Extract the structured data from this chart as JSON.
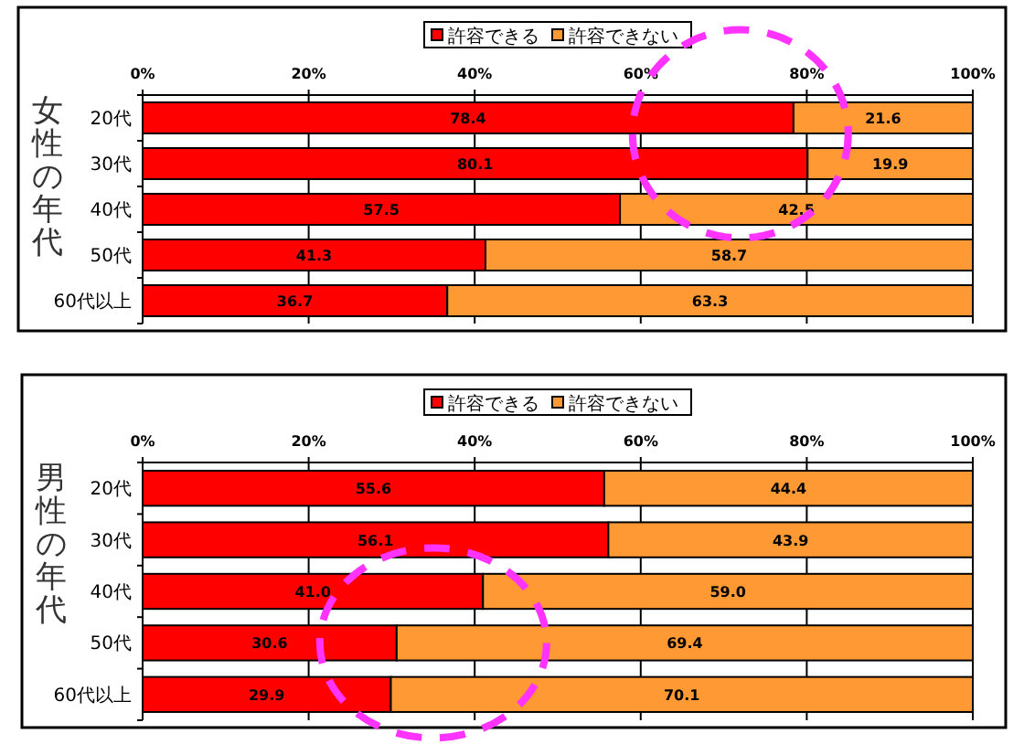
{
  "chart_data": [
    {
      "type": "bar",
      "orientation": "horizontal",
      "stacked": true,
      "ylabel": "女性の年代",
      "categories": [
        "20代",
        "30代",
        "40代",
        "50代",
        "60代以上"
      ],
      "series": [
        {
          "name": "許容できる",
          "color": "#ff0000",
          "values": [
            78.4,
            80.1,
            57.5,
            41.3,
            36.7
          ],
          "value_labels": [
            "78.4",
            "80.1",
            "57.5",
            "41.3",
            "36.7"
          ]
        },
        {
          "name": "許容できない",
          "color": "#ff9933",
          "values": [
            21.6,
            19.9,
            42.5,
            58.7,
            63.3
          ],
          "value_labels": [
            "21.6",
            "19.9",
            "42.5",
            "58.7",
            "63.3"
          ]
        }
      ],
      "xlim": [
        0,
        100
      ],
      "xticks": [
        {
          "value": 0,
          "label": "0%"
        },
        {
          "value": 20,
          "label": "20%"
        },
        {
          "value": 40,
          "label": "40%"
        },
        {
          "value": 60,
          "label": "60%"
        },
        {
          "value": 80,
          "label": "80%"
        },
        {
          "value": 100,
          "label": "100%"
        }
      ],
      "grid": "x",
      "legend": "top"
    },
    {
      "type": "bar",
      "orientation": "horizontal",
      "stacked": true,
      "ylabel": "男性の年代",
      "categories": [
        "20代",
        "30代",
        "40代",
        "50代",
        "60代以上"
      ],
      "series": [
        {
          "name": "許容できる",
          "color": "#ff0000",
          "values": [
            55.6,
            56.1,
            41.0,
            30.6,
            29.9
          ],
          "value_labels": [
            "55.6",
            "56.1",
            "41.0",
            "30.6",
            "29.9"
          ]
        },
        {
          "name": "許容できない",
          "color": "#ff9933",
          "values": [
            44.4,
            43.9,
            59.0,
            69.4,
            70.1
          ],
          "value_labels": [
            "44.4",
            "43.9",
            "59.0",
            "69.4",
            "70.1"
          ]
        }
      ],
      "xlim": [
        0,
        100
      ],
      "xticks": [
        {
          "value": 0,
          "label": "0%"
        },
        {
          "value": 20,
          "label": "20%"
        },
        {
          "value": 40,
          "label": "40%"
        },
        {
          "value": 60,
          "label": "60%"
        },
        {
          "value": 80,
          "label": "80%"
        },
        {
          "value": 100,
          "label": "100%"
        }
      ],
      "grid": "x",
      "legend": "top"
    }
  ]
}
